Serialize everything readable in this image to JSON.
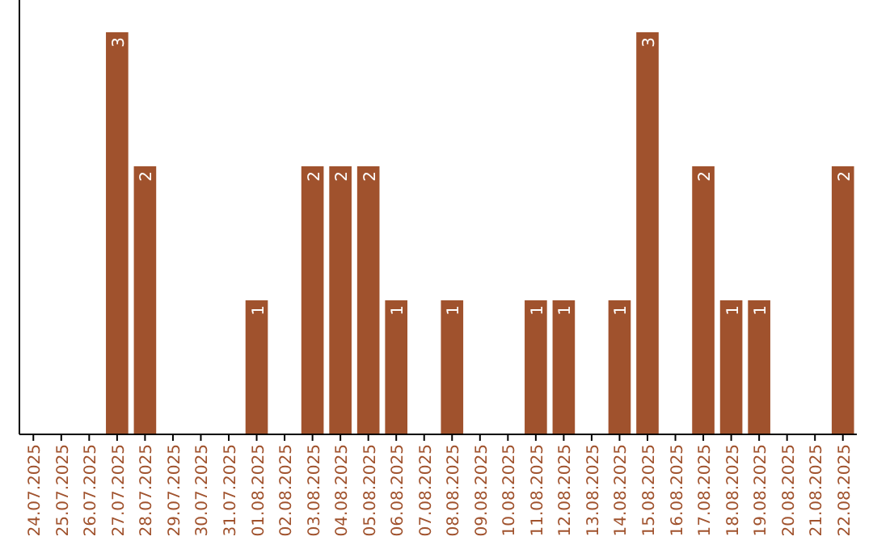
{
  "chart_data": {
    "type": "bar",
    "categories": [
      "24.07.2025",
      "25.07.2025",
      "26.07.2025",
      "27.07.2025",
      "28.07.2025",
      "29.07.2025",
      "30.07.2025",
      "31.07.2025",
      "01.08.2025",
      "02.08.2025",
      "03.08.2025",
      "04.08.2025",
      "05.08.2025",
      "06.08.2025",
      "07.08.2025",
      "08.08.2025",
      "09.08.2025",
      "10.08.2025",
      "11.08.2025",
      "12.08.2025",
      "13.08.2025",
      "14.08.2025",
      "15.08.2025",
      "16.08.2025",
      "17.08.2025",
      "18.08.2025",
      "19.08.2025",
      "20.08.2025",
      "21.08.2025",
      "22.08.2025"
    ],
    "values": [
      0,
      0,
      0,
      3,
      2,
      0,
      0,
      0,
      1,
      0,
      2,
      2,
      2,
      1,
      0,
      1,
      0,
      0,
      1,
      1,
      0,
      1,
      3,
      0,
      2,
      1,
      1,
      0,
      0,
      2
    ],
    "value_labels": [
      null,
      null,
      null,
      "3",
      "2",
      null,
      null,
      null,
      "1",
      null,
      "2",
      "2",
      "2",
      "1",
      null,
      "1",
      null,
      null,
      "1",
      "1",
      null,
      "1",
      "3",
      null,
      "2",
      "1",
      "1",
      null,
      null,
      "2"
    ],
    "color": "#a0522d",
    "tick_labels": "x"
  }
}
